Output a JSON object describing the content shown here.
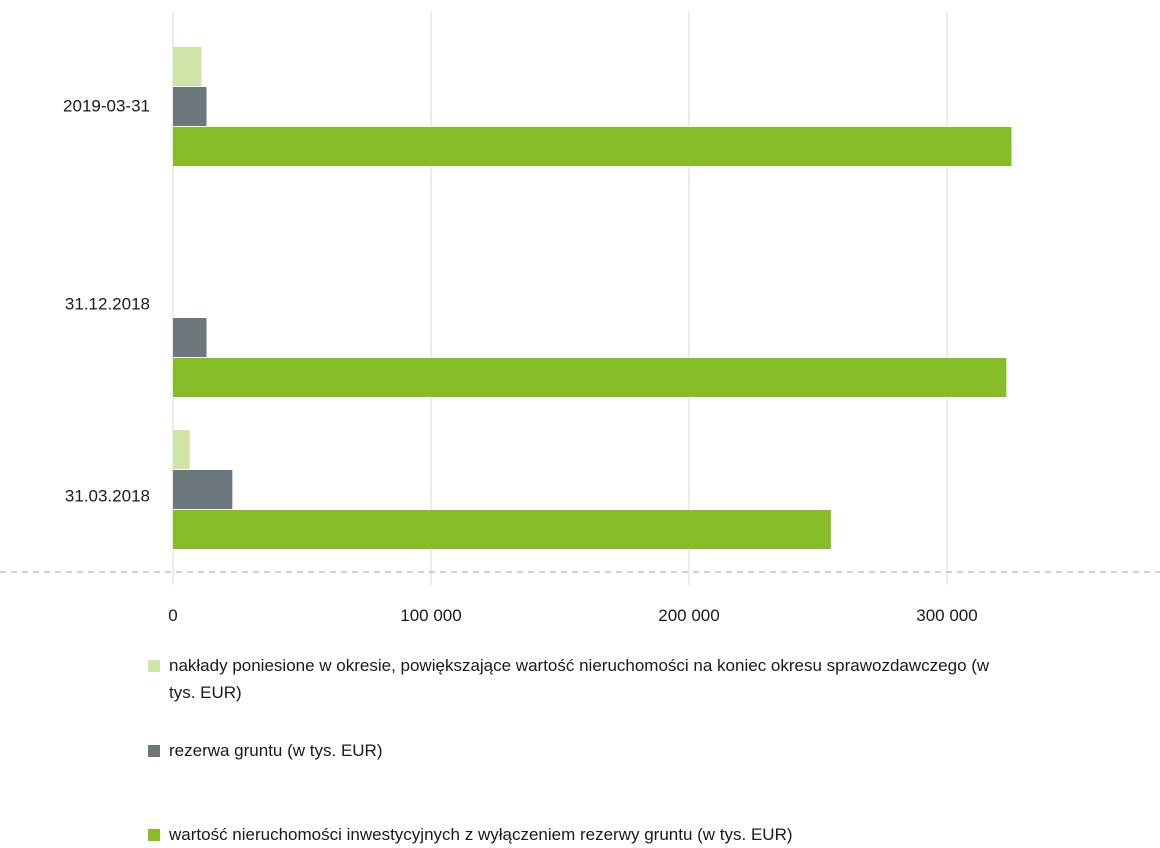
{
  "chart_data": {
    "type": "bar",
    "orientation": "horizontal",
    "categories": [
      "2019-03-31",
      "31.12.2018",
      "31.03.2018"
    ],
    "series": [
      {
        "name": "nakłady poniesione w okresie, powiększające wartość nieruchomości na koniec okresu sprawozdawczego (w tys. EUR)",
        "color": "#d0e4a8",
        "values": [
          11000,
          0,
          6500
        ]
      },
      {
        "name": "rezerwa gruntu (w tys. EUR)",
        "color": "#6b777b",
        "values": [
          13000,
          13000,
          23000
        ]
      },
      {
        "name": "wartość nieruchomości inwestycyjnych z wyłączeniem rezerwy gruntu (w tys. EUR)",
        "color": "#86bc25",
        "values": [
          325000,
          323000,
          255000
        ]
      }
    ],
    "xlim": [
      0,
      380000
    ],
    "xticks": [
      0,
      100000,
      200000,
      300000
    ],
    "xtick_labels": [
      "0",
      "100 000",
      "200 000",
      "300 000"
    ],
    "grid": true,
    "legend_position": "bottom"
  }
}
